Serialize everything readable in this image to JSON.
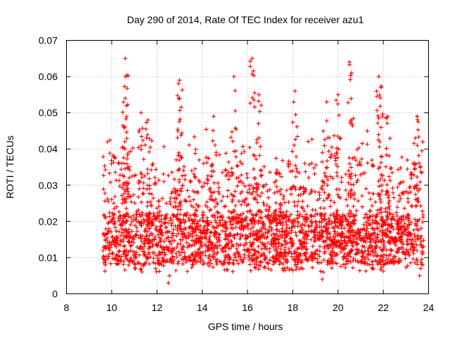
{
  "chart_data": {
    "type": "scatter",
    "title": "Day 290 of 2014, Rate Of TEC Index for receiver azu1",
    "xlabel": "GPS time / hours",
    "ylabel": "ROTI / TECUs",
    "xlim": [
      8,
      24
    ],
    "ylim": [
      0,
      0.07
    ],
    "xticks": [
      8,
      10,
      12,
      14,
      16,
      18,
      20,
      22,
      24
    ],
    "yticks": [
      0,
      0.01,
      0.02,
      0.03,
      0.04,
      0.05,
      0.06,
      0.07
    ],
    "xtick_labels": [
      "8",
      "10",
      "12",
      "14",
      "16",
      "18",
      "20",
      "22",
      "24"
    ],
    "ytick_labels": [
      "0",
      "0.01",
      "0.02",
      "0.03",
      "0.04",
      "0.05",
      "0.06",
      "0.07"
    ],
    "grid": true,
    "marker": "+",
    "color": "#ff0000",
    "series": [
      {
        "name": "ROTI",
        "x_range": [
          9.6,
          23.8
        ],
        "typical_band": [
          0.007,
          0.03
        ],
        "peaks": [
          {
            "x": 10.6,
            "y": 0.065
          },
          {
            "x": 10.6,
            "y": 0.06
          },
          {
            "x": 10.6,
            "y": 0.054
          },
          {
            "x": 11.3,
            "y": 0.05
          },
          {
            "x": 11.6,
            "y": 0.048
          },
          {
            "x": 13.0,
            "y": 0.059
          },
          {
            "x": 13.0,
            "y": 0.054
          },
          {
            "x": 14.5,
            "y": 0.049
          },
          {
            "x": 15.4,
            "y": 0.06
          },
          {
            "x": 16.2,
            "y": 0.065
          },
          {
            "x": 16.5,
            "y": 0.055
          },
          {
            "x": 18.1,
            "y": 0.056
          },
          {
            "x": 19.5,
            "y": 0.053
          },
          {
            "x": 20.0,
            "y": 0.055
          },
          {
            "x": 20.5,
            "y": 0.064
          },
          {
            "x": 20.6,
            "y": 0.061
          },
          {
            "x": 21.8,
            "y": 0.06
          },
          {
            "x": 21.9,
            "y": 0.057
          },
          {
            "x": 22.2,
            "y": 0.049
          },
          {
            "x": 23.5,
            "y": 0.049
          }
        ],
        "lows": [
          {
            "x": 12.5,
            "y": 0.003
          },
          {
            "x": 19.3,
            "y": 0.004
          },
          {
            "x": 23.6,
            "y": 0.005
          }
        ]
      }
    ]
  }
}
